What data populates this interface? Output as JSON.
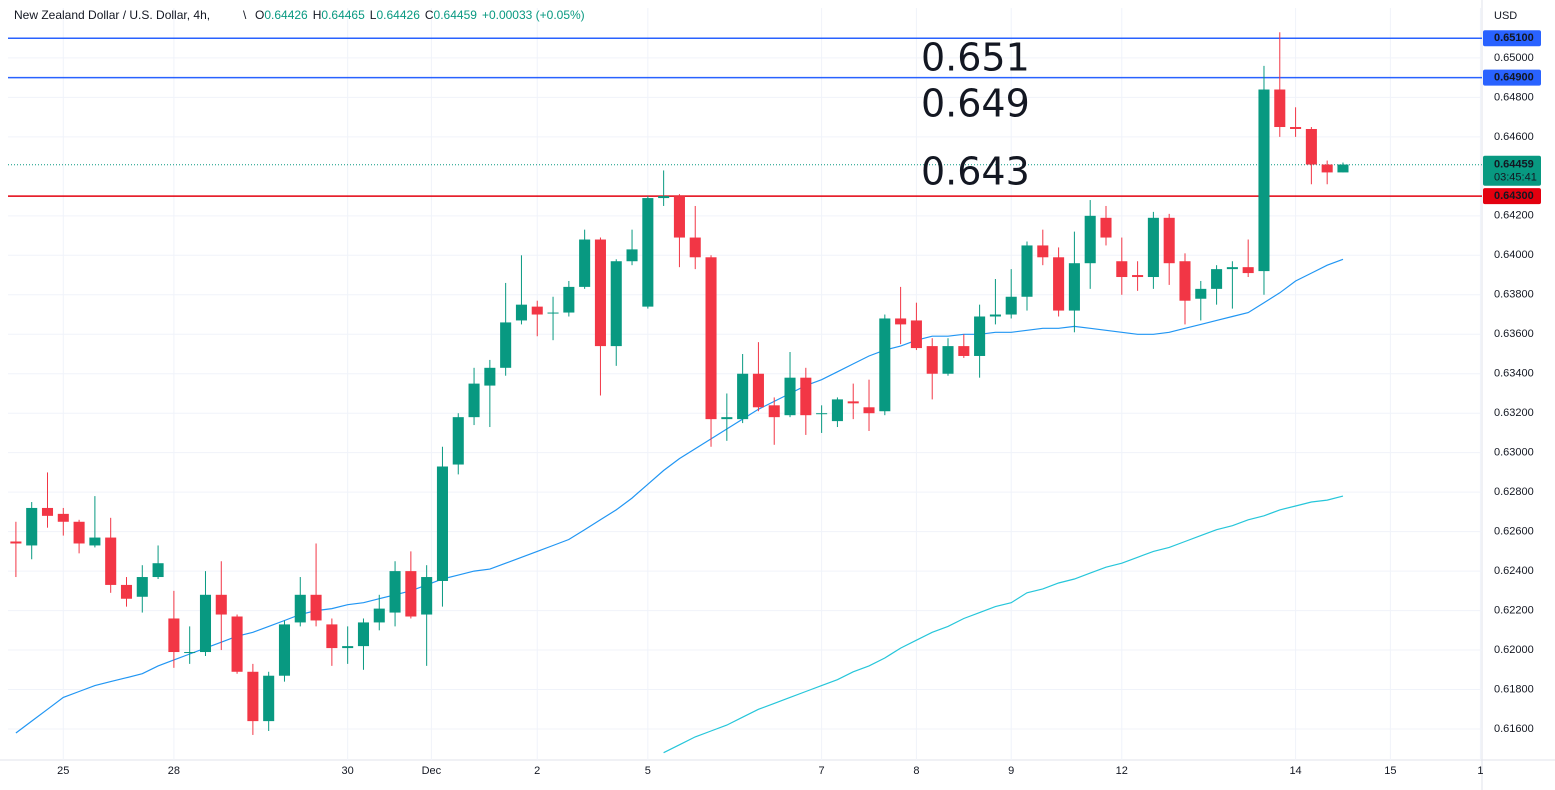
{
  "chart_data": {
    "type": "candlestick",
    "title": "New Zealand Dollar / U.S. Dollar, 4h,",
    "ohlc_legend": [
      {
        "key": "O",
        "value": "0.64426"
      },
      {
        "key": "H",
        "value": "0.64465"
      },
      {
        "key": "L",
        "value": "0.64426"
      },
      {
        "key": "C",
        "value": "0.64459"
      }
    ],
    "change": "+0.00033 (+0.05%)",
    "currency": "USD",
    "up_color": "#089981",
    "down_color": "#f23645",
    "open": [
      0.6255,
      0.6253,
      0.6272,
      0.6269,
      0.6265,
      0.6253,
      0.6257,
      0.6233,
      0.6227,
      0.6237,
      0.6216,
      0.6199,
      0.6199,
      0.6228,
      0.6217,
      0.6189,
      0.6164,
      0.6187,
      0.6214,
      0.6228,
      0.6213,
      0.6201,
      0.6202,
      0.6214,
      0.6219,
      0.624,
      0.6218,
      0.6235,
      0.6294,
      0.6318,
      0.6334,
      0.6343,
      0.6367,
      0.6374,
      0.6371,
      0.6371,
      0.6384,
      0.6408,
      0.6354,
      0.6397,
      0.6374,
      0.6429,
      0.643,
      0.6409,
      0.6399,
      0.6317,
      0.6317,
      0.634,
      0.6324,
      0.6319,
      0.6338,
      0.632,
      0.6316,
      0.6326,
      0.6323,
      0.6321,
      0.6368,
      0.6367,
      0.6354,
      0.634,
      0.6354,
      0.6349,
      0.6369,
      0.637,
      0.6379,
      0.6405,
      0.6399,
      0.6372,
      0.6396,
      0.6419,
      0.6397,
      0.639,
      0.6389,
      0.6419,
      0.6397,
      0.6378,
      0.6383,
      0.6393,
      0.6394,
      0.6392,
      0.6484,
      0.6465,
      0.6464,
      0.6446,
      0.6442
    ],
    "high": [
      0.6265,
      0.6275,
      0.629,
      0.6272,
      0.6266,
      0.6278,
      0.6267,
      0.6237,
      0.6243,
      0.6253,
      0.623,
      0.6212,
      0.624,
      0.6245,
      0.6218,
      0.6193,
      0.6189,
      0.6215,
      0.6237,
      0.6254,
      0.6216,
      0.6212,
      0.6216,
      0.6228,
      0.6245,
      0.625,
      0.6243,
      0.6303,
      0.632,
      0.6343,
      0.6347,
      0.6386,
      0.64,
      0.6377,
      0.6379,
      0.6387,
      0.6413,
      0.6409,
      0.6398,
      0.6413,
      0.643,
      0.6443,
      0.6431,
      0.6425,
      0.64,
      0.633,
      0.635,
      0.6356,
      0.6328,
      0.6351,
      0.6343,
      0.6324,
      0.6328,
      0.6335,
      0.6337,
      0.637,
      0.6384,
      0.6376,
      0.6358,
      0.6358,
      0.636,
      0.6375,
      0.6388,
      0.6393,
      0.6407,
      0.6413,
      0.6404,
      0.6412,
      0.6428,
      0.6425,
      0.6409,
      0.6397,
      0.6422,
      0.6421,
      0.6401,
      0.6387,
      0.6395,
      0.6397,
      0.6408,
      0.6496,
      0.6513,
      0.6475,
      0.6465,
      0.6448,
      0.6447
    ],
    "low": [
      0.6237,
      0.6246,
      0.6262,
      0.6258,
      0.6249,
      0.6252,
      0.6229,
      0.6222,
      0.6219,
      0.6236,
      0.6191,
      0.6193,
      0.6197,
      0.62,
      0.6188,
      0.6157,
      0.6159,
      0.6184,
      0.6212,
      0.6212,
      0.6192,
      0.6193,
      0.619,
      0.621,
      0.6212,
      0.6216,
      0.6192,
      0.6222,
      0.6289,
      0.6314,
      0.6313,
      0.6339,
      0.6365,
      0.6359,
      0.6357,
      0.6369,
      0.6383,
      0.6329,
      0.6344,
      0.6395,
      0.6373,
      0.6425,
      0.6394,
      0.6393,
      0.6303,
      0.6306,
      0.6315,
      0.6321,
      0.6304,
      0.6318,
      0.6309,
      0.631,
      0.6313,
      0.6317,
      0.6311,
      0.6319,
      0.6355,
      0.6352,
      0.6327,
      0.6339,
      0.6348,
      0.6338,
      0.6365,
      0.6368,
      0.6372,
      0.6395,
      0.6369,
      0.6361,
      0.6383,
      0.6405,
      0.638,
      0.6382,
      0.6383,
      0.6385,
      0.6365,
      0.6367,
      0.6375,
      0.6373,
      0.6389,
      0.638,
      0.646,
      0.646,
      0.6436,
      0.6436,
      0.6442
    ],
    "close": [
      0.6254,
      0.6272,
      0.6268,
      0.6265,
      0.6254,
      0.6257,
      0.6233,
      0.6226,
      0.6237,
      0.6244,
      0.6199,
      0.6199,
      0.6228,
      0.6218,
      0.6189,
      0.6164,
      0.6187,
      0.6213,
      0.6228,
      0.6215,
      0.6201,
      0.6202,
      0.6214,
      0.6221,
      0.624,
      0.6217,
      0.6237,
      0.6293,
      0.6318,
      0.6335,
      0.6343,
      0.6366,
      0.6375,
      0.637,
      0.6371,
      0.6384,
      0.6408,
      0.6354,
      0.6397,
      0.6403,
      0.6429,
      0.643,
      0.6409,
      0.6399,
      0.6317,
      0.6318,
      0.634,
      0.6323,
      0.6318,
      0.6338,
      0.6319,
      0.632,
      0.6327,
      0.6325,
      0.632,
      0.6368,
      0.6365,
      0.6353,
      0.634,
      0.6354,
      0.6349,
      0.6369,
      0.637,
      0.6379,
      0.6405,
      0.6399,
      0.6372,
      0.6396,
      0.642,
      0.6409,
      0.6389,
      0.6389,
      0.6419,
      0.6396,
      0.6377,
      0.6383,
      0.6393,
      0.6394,
      0.6391,
      0.6484,
      0.6465,
      0.6464,
      0.6446,
      0.6442,
      0.6446
    ],
    "ma": [
      {
        "color": "#2196f3",
        "values": [
          0.6158,
          0.6164,
          0.617,
          0.6176,
          0.6179,
          0.6182,
          0.6184,
          0.6186,
          0.6188,
          0.6192,
          0.6195,
          0.6198,
          0.6201,
          0.6204,
          0.6207,
          0.6209,
          0.6212,
          0.6215,
          0.6218,
          0.622,
          0.6221,
          0.6223,
          0.6224,
          0.6226,
          0.6228,
          0.623,
          0.6233,
          0.6236,
          0.6238,
          0.624,
          0.6241,
          0.6244,
          0.6247,
          0.625,
          0.6253,
          0.6256,
          0.6261,
          0.6266,
          0.6271,
          0.6277,
          0.6284,
          0.6291,
          0.6297,
          0.6302,
          0.6307,
          0.6312,
          0.6317,
          0.6322,
          0.6326,
          0.633,
          0.6334,
          0.6337,
          0.6341,
          0.6345,
          0.6349,
          0.6352,
          0.6354,
          0.6357,
          0.6359,
          0.6359,
          0.636,
          0.636,
          0.6361,
          0.6361,
          0.6362,
          0.6363,
          0.6363,
          0.6364,
          0.6363,
          0.6362,
          0.6361,
          0.636,
          0.636,
          0.6361,
          0.6363,
          0.6365,
          0.6367,
          0.6369,
          0.6371,
          0.6376,
          0.6381,
          0.6387,
          0.6391,
          0.6395,
          0.6398
        ]
      },
      {
        "color": "#26c6da",
        "values": [
          null,
          null,
          null,
          null,
          null,
          null,
          null,
          null,
          null,
          null,
          null,
          null,
          null,
          null,
          null,
          null,
          null,
          null,
          null,
          null,
          null,
          null,
          null,
          null,
          null,
          null,
          null,
          null,
          null,
          null,
          null,
          null,
          null,
          null,
          null,
          null,
          null,
          null,
          null,
          null,
          null,
          0.6148,
          0.6152,
          0.6156,
          0.6159,
          0.6162,
          0.6166,
          0.617,
          0.6173,
          0.6176,
          0.6179,
          0.6182,
          0.6185,
          0.6189,
          0.6192,
          0.6196,
          0.6201,
          0.6205,
          0.6209,
          0.6212,
          0.6216,
          0.6219,
          0.6222,
          0.6224,
          0.6229,
          0.6231,
          0.6234,
          0.6236,
          0.6239,
          0.6242,
          0.6244,
          0.6247,
          0.625,
          0.6252,
          0.6255,
          0.6258,
          0.6261,
          0.6263,
          0.6266,
          0.6268,
          0.6271,
          0.6273,
          0.6275,
          0.6276,
          0.6278
        ]
      }
    ],
    "levels": [
      {
        "value": 0.651,
        "label": "0.65100",
        "color": "#2962ff"
      },
      {
        "value": 0.649,
        "label": "0.64900",
        "color": "#2962ff"
      },
      {
        "value": 0.643,
        "label": "0.64300",
        "color": "#e3000f"
      }
    ],
    "annotations": [
      {
        "value": 0.651,
        "color": "#f23645"
      },
      {
        "value": 0.649,
        "color": "#f23645"
      },
      {
        "value": 0.643,
        "color": "#f23645"
      }
    ],
    "current": {
      "value": 0.64459,
      "countdown": "03:45:41",
      "color": "#089981"
    },
    "ylim": [
      0.61443,
      0.65253
    ],
    "yticks": [
      {
        "value": 0.616,
        "label": "0.61600"
      },
      {
        "value": 0.618,
        "label": "0.61800"
      },
      {
        "value": 0.62,
        "label": "0.62000"
      },
      {
        "value": 0.622,
        "label": "0.62200"
      },
      {
        "value": 0.624,
        "label": "0.62400"
      },
      {
        "value": 0.626,
        "label": "0.62600"
      },
      {
        "value": 0.628,
        "label": "0.62800"
      },
      {
        "value": 0.63,
        "label": "0.63000"
      },
      {
        "value": 0.632,
        "label": "0.63200"
      },
      {
        "value": 0.634,
        "label": "0.63400"
      },
      {
        "value": 0.636,
        "label": "0.63600"
      },
      {
        "value": 0.638,
        "label": "0.63800"
      },
      {
        "value": 0.64,
        "label": "0.64000"
      },
      {
        "value": 0.642,
        "label": "0.64200"
      },
      {
        "value": 0.646,
        "label": "0.64600"
      },
      {
        "value": 0.648,
        "label": "0.64800"
      },
      {
        "value": 0.65,
        "label": "0.65000"
      }
    ],
    "xlim": [
      -0.5,
      92.8
    ],
    "xticks": [
      {
        "value": 3,
        "label": "25"
      },
      {
        "value": 10,
        "label": "28"
      },
      {
        "value": 21,
        "label": "30"
      },
      {
        "value": 26.3,
        "label": "Dec"
      },
      {
        "value": 33,
        "label": "2"
      },
      {
        "value": 40,
        "label": "5"
      },
      {
        "value": 51,
        "label": "7"
      },
      {
        "value": 57,
        "label": "8"
      },
      {
        "value": 63,
        "label": "9"
      },
      {
        "value": 70,
        "label": "12"
      },
      {
        "value": 81,
        "label": "14"
      },
      {
        "value": 87,
        "label": "15"
      },
      {
        "value": 92.7,
        "label": "1"
      }
    ],
    "grid": true
  }
}
